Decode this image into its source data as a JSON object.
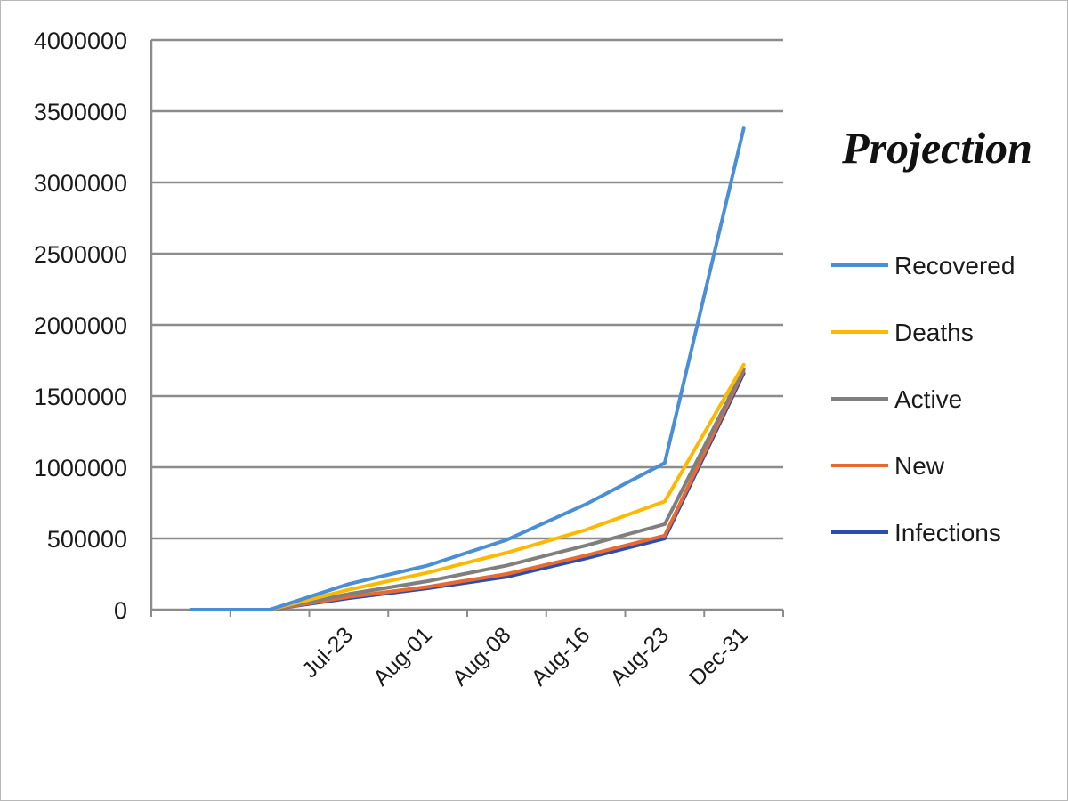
{
  "chart_data": {
    "type": "line",
    "title": "Projection",
    "xlabel": "",
    "ylabel": "",
    "categories": [
      "",
      "",
      "Jul-23",
      "Aug-01",
      "Aug-08",
      "Aug-16",
      "Aug-23",
      "Dec-31"
    ],
    "ylim": [
      0,
      4000000
    ],
    "yticks": [
      0,
      500000,
      1000000,
      1500000,
      2000000,
      2500000,
      3000000,
      3500000,
      4000000
    ],
    "ytick_labels": [
      "0",
      "500000",
      "1000000",
      "1500000",
      "2000000",
      "2500000",
      "3000000",
      "3500000",
      "4000000"
    ],
    "grid": true,
    "legend_position": "right",
    "series": [
      {
        "name": "Recovered",
        "color": "#4a8fd6",
        "values": [
          0,
          0,
          180000,
          310000,
          490000,
          740000,
          1030000,
          3380000
        ]
      },
      {
        "name": "Deaths",
        "color": "#ffb800",
        "values": [
          0,
          0,
          140000,
          260000,
          400000,
          560000,
          760000,
          1720000
        ]
      },
      {
        "name": "Active",
        "color": "#7f7f7f",
        "values": [
          0,
          0,
          110000,
          200000,
          310000,
          450000,
          600000,
          1690000
        ]
      },
      {
        "name": "New",
        "color": "#e86a2e",
        "values": [
          0,
          0,
          90000,
          160000,
          250000,
          380000,
          520000,
          1680000
        ]
      },
      {
        "name": "Infections",
        "color": "#2a4db0",
        "values": [
          0,
          0,
          80000,
          150000,
          230000,
          360000,
          500000,
          1660000
        ]
      }
    ]
  }
}
